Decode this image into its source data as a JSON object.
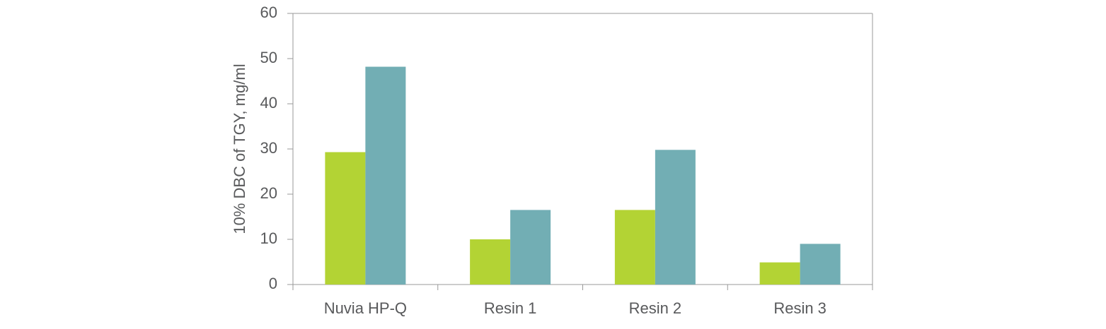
{
  "chart_data": {
    "type": "bar",
    "ylabel": "10% DBC of TGY, mg/ml",
    "categories": [
      "Nuvia HP-Q",
      "Resin 1",
      "Resin 2",
      "Resin 3"
    ],
    "series": [
      {
        "color": "#b3d334",
        "values": [
          29.3,
          10,
          16.5,
          4.9
        ]
      },
      {
        "color": "#72aeb4",
        "values": [
          48.2,
          16.5,
          29.8,
          9
        ]
      }
    ],
    "ylim": [
      0,
      60
    ],
    "yticks": [
      0,
      10,
      20,
      30,
      40,
      50,
      60
    ],
    "grid": false
  }
}
